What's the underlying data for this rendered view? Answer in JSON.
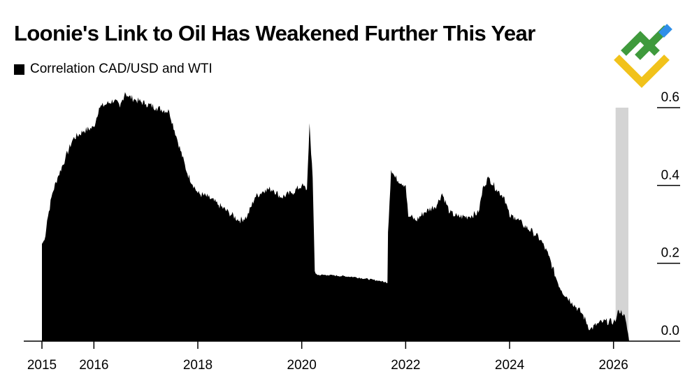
{
  "chart_data": {
    "type": "area",
    "title": "Loonie's Link to Oil Has Weakened Further This Year",
    "legend": [
      {
        "label": "Correlation CAD/USD and WTI",
        "color": "#000000"
      }
    ],
    "xlabel": "",
    "ylabel": "",
    "xlim": [
      2015,
      2027.5
    ],
    "ylim": [
      0,
      0.6
    ],
    "x_ticks": [
      2015,
      2016,
      2018,
      2020,
      2022,
      2024,
      2026
    ],
    "y_ticks": [
      0.0,
      0.2,
      0.4,
      0.6
    ],
    "y_tick_labels": [
      "0.0",
      "0.2",
      "0.4",
      "0.6"
    ],
    "y_axis_position": "right",
    "highlight_band": {
      "x_start": 2026.0,
      "x_end": 2026.3,
      "color": "#d4d4d4"
    },
    "series": [
      {
        "name": "Correlation CAD/USD and WTI",
        "color": "#000000",
        "x": [
          2015.0,
          2015.05,
          2015.1,
          2015.2,
          2015.3,
          2015.45,
          2015.6,
          2015.8,
          2016.0,
          2016.1,
          2016.25,
          2016.4,
          2016.5,
          2016.6,
          2016.65,
          2016.8,
          2017.0,
          2017.2,
          2017.45,
          2017.6,
          2017.8,
          2018.0,
          2018.2,
          2018.4,
          2018.6,
          2018.8,
          2018.95,
          2019.1,
          2019.3,
          2019.45,
          2019.6,
          2019.8,
          2020.0,
          2020.1,
          2020.15,
          2020.18,
          2020.21,
          2020.25,
          2020.3,
          2020.5,
          2021.0,
          2021.5,
          2021.65,
          2021.66,
          2021.72,
          2021.8,
          2022.0,
          2022.05,
          2022.1,
          2022.2,
          2022.35,
          2022.6,
          2022.7,
          2022.85,
          2023.0,
          2023.2,
          2023.4,
          2023.5,
          2023.6,
          2023.75,
          2023.9,
          2024.0,
          2024.1,
          2024.25,
          2024.45,
          2024.6,
          2024.75,
          2024.9,
          2025.0,
          2025.2,
          2025.4,
          2025.55,
          2025.7,
          2025.8,
          2026.0,
          2026.05,
          2026.1,
          2026.2,
          2026.28,
          2026.3
        ],
        "values": [
          0.25,
          0.26,
          0.31,
          0.38,
          0.42,
          0.47,
          0.52,
          0.54,
          0.55,
          0.6,
          0.61,
          0.62,
          0.6,
          0.64,
          0.63,
          0.62,
          0.61,
          0.6,
          0.59,
          0.52,
          0.43,
          0.38,
          0.37,
          0.35,
          0.33,
          0.31,
          0.32,
          0.37,
          0.39,
          0.39,
          0.37,
          0.38,
          0.4,
          0.39,
          0.56,
          0.48,
          0.42,
          0.18,
          0.17,
          0.17,
          0.165,
          0.155,
          0.15,
          0.28,
          0.44,
          0.42,
          0.4,
          0.32,
          0.32,
          0.31,
          0.33,
          0.35,
          0.38,
          0.33,
          0.32,
          0.32,
          0.33,
          0.4,
          0.42,
          0.39,
          0.37,
          0.32,
          0.32,
          0.3,
          0.28,
          0.26,
          0.22,
          0.16,
          0.13,
          0.1,
          0.07,
          0.03,
          0.045,
          0.05,
          0.05,
          0.055,
          0.08,
          0.07,
          0.02,
          0.0
        ]
      }
    ]
  }
}
